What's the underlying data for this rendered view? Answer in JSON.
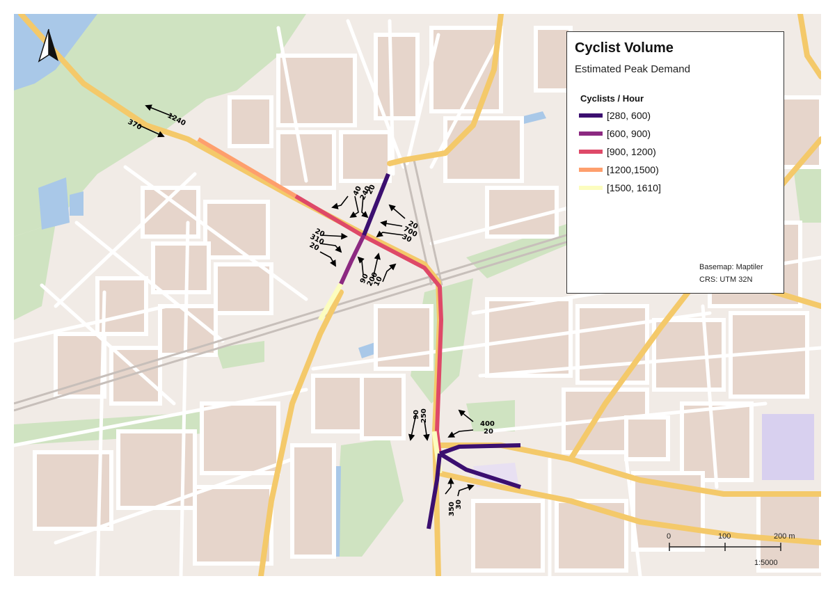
{
  "legend": {
    "title": "Cyclist Volume",
    "subtitle": "Estimated Peak Demand",
    "heading": "Cyclists / Hour",
    "classes": [
      {
        "label": "[280, 600)",
        "color": "#3b0f70"
      },
      {
        "label": "[600, 900)",
        "color": "#8c2981"
      },
      {
        "label": "[900, 1200)",
        "color": "#de4968"
      },
      {
        "label": "[1200,1500)",
        "color": "#fe9f6d"
      },
      {
        "label": "[1500, 1610]",
        "color": "#fcfdbf"
      }
    ],
    "basemap": "Basemap: Maptiler",
    "crs": "CRS: UTM 32N"
  },
  "scale_bar": {
    "ticks": [
      "0",
      "100",
      "200 m"
    ],
    "ratio": "1:5000"
  },
  "flow_labels": {
    "nw_a": "1240",
    "nw_b": "370",
    "n_a": "40",
    "n_b": "240",
    "n_c": "20",
    "e_a": "20",
    "e_b": "700",
    "e_c": "30",
    "w_a": "20",
    "w_b": "310",
    "w_c": "20",
    "s_a": "90",
    "s_b": "200",
    "s_c": "10",
    "j2_nw_a": "90",
    "j2_nw_b": "250",
    "j2_ne_a": "400",
    "j2_ne_b": "20",
    "j2_s_a": "350",
    "j2_s_b": "30"
  },
  "colors": {
    "background": "#f1ebe6",
    "building": "#e6d5cb",
    "park": "#cfe3c1",
    "water": "#a9c8e8",
    "major_road": "#f4c96a",
    "minor_road": "#ffffff"
  },
  "icons": {
    "north_arrow": "north-arrow-icon"
  }
}
